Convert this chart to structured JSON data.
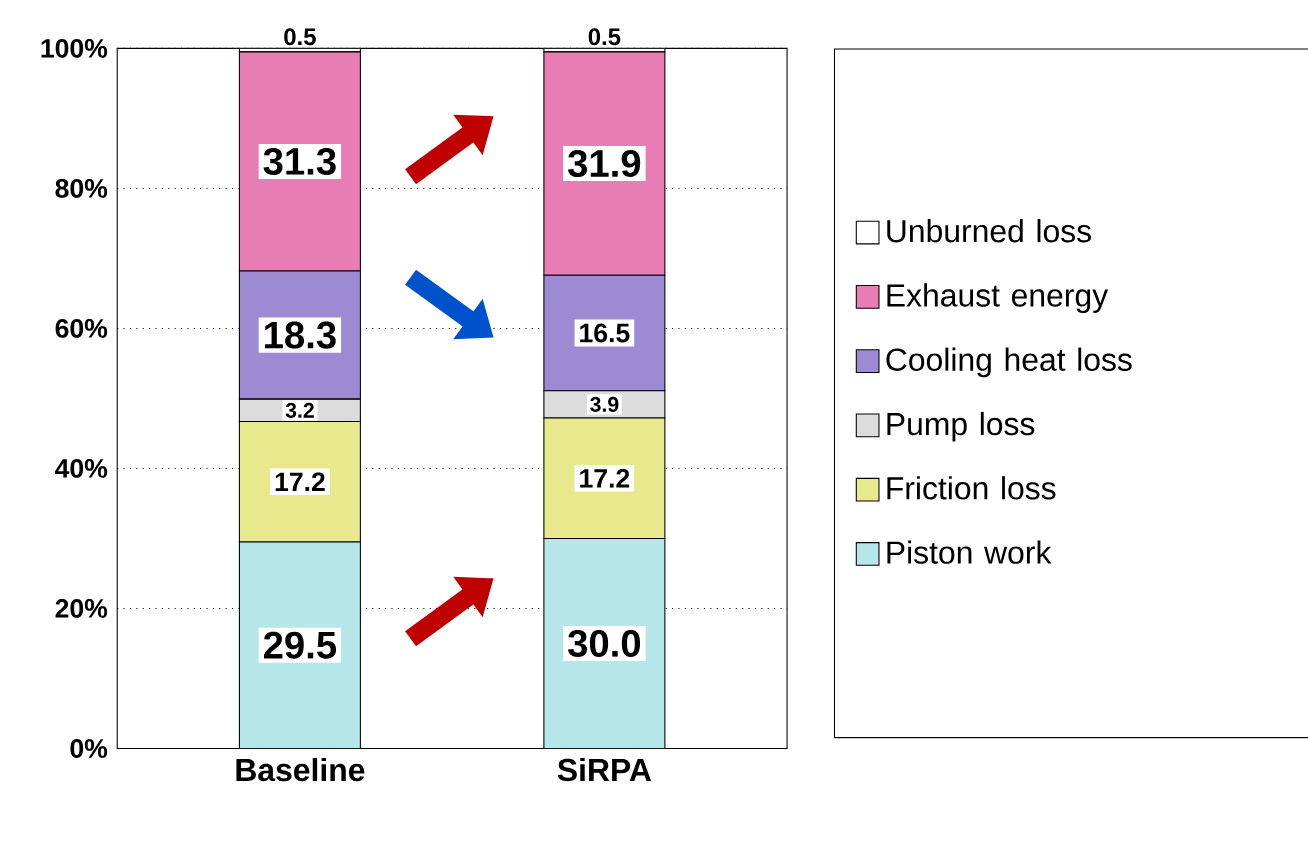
{
  "chart_data": {
    "type": "bar",
    "stacked": true,
    "categories": [
      "Baseline",
      "SiRPA"
    ],
    "series": [
      {
        "name": "Piston work",
        "color": "#b5e6ea",
        "values": [
          29.5,
          30.0
        ],
        "value_labels": [
          "29.5",
          "30.0"
        ]
      },
      {
        "name": "Friction loss",
        "color": "#e8e88c",
        "values": [
          17.2,
          17.2
        ],
        "value_labels": [
          "17.2",
          "17.2"
        ]
      },
      {
        "name": "Pump loss",
        "color": "#dcdcdc",
        "values": [
          3.2,
          3.9
        ],
        "value_labels": [
          "3.2",
          "3.9"
        ]
      },
      {
        "name": "Cooling heat loss",
        "color": "#9c8ad2",
        "values": [
          18.3,
          16.5
        ],
        "value_labels": [
          "18.3",
          "16.5"
        ]
      },
      {
        "name": "Exhaust energy",
        "color": "#e87db6",
        "values": [
          31.3,
          31.9
        ],
        "value_labels": [
          "31.3",
          "31.9"
        ]
      },
      {
        "name": "Unburned loss",
        "color": "#ffffff",
        "values": [
          0.5,
          0.5
        ],
        "value_labels": [
          "0.5",
          "0.5"
        ]
      }
    ],
    "ylim": [
      0,
      100
    ],
    "yticks": [
      {
        "value": 0,
        "label": "0%"
      },
      {
        "value": 20,
        "label": "20%"
      },
      {
        "value": 40,
        "label": "40%"
      },
      {
        "value": 60,
        "label": "60%"
      },
      {
        "value": 80,
        "label": "80%"
      },
      {
        "value": 100,
        "label": "100%"
      }
    ],
    "grid": "y",
    "legend": "right"
  }
}
